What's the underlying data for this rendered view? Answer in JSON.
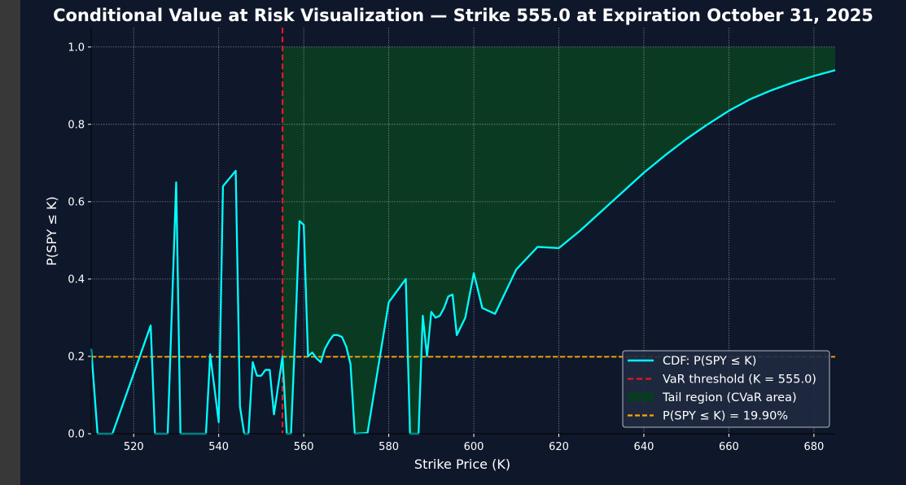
{
  "chart_data": {
    "type": "line",
    "title": "Conditional Value at Risk Visualization — Strike 555.0 at Expiration October 31, 2025",
    "xlabel": "Strike Price (K)",
    "ylabel": "P(SPY ≤ K)",
    "xlim": [
      510,
      685
    ],
    "ylim": [
      0,
      1.05
    ],
    "xticks": [
      520,
      540,
      560,
      580,
      600,
      620,
      640,
      660,
      680
    ],
    "yticks": [
      0.0,
      0.2,
      0.4,
      0.6,
      0.8,
      1.0
    ],
    "grid": true,
    "legend_position": "lower right",
    "series": [
      {
        "name": "CDF: P(SPY ≤ K)",
        "style": "solid",
        "color": "#00ffff",
        "x": [
          510,
          511.5,
          515,
          524,
          525,
          528,
          530,
          531,
          537,
          538,
          540,
          541,
          544,
          545,
          546,
          547,
          548,
          549,
          550,
          551,
          552,
          553,
          555,
          556,
          557,
          558,
          559,
          560,
          561,
          562,
          563,
          564,
          565,
          566,
          567,
          568,
          569,
          570,
          571,
          572,
          575,
          580,
          584,
          585,
          587,
          588,
          589,
          590,
          591,
          592,
          593,
          594,
          595,
          596,
          598,
          600,
          602,
          605,
          610,
          615,
          620,
          625,
          630,
          635,
          640,
          645,
          650,
          655,
          660,
          665,
          670,
          675,
          680,
          685
        ],
        "y": [
          0.22,
          0.0,
          0.0,
          0.28,
          0.0,
          0.0,
          0.65,
          0.0,
          0.0,
          0.205,
          0.03,
          0.64,
          0.68,
          0.07,
          0.0,
          0.0,
          0.185,
          0.15,
          0.15,
          0.165,
          0.165,
          0.05,
          0.2,
          0.0,
          0.0,
          0.26,
          0.55,
          0.54,
          0.2,
          0.21,
          0.195,
          0.185,
          0.22,
          0.24,
          0.255,
          0.255,
          0.25,
          0.225,
          0.18,
          0.0,
          0.002,
          0.34,
          0.4,
          0.0,
          0.0,
          0.305,
          0.2,
          0.315,
          0.3,
          0.305,
          0.325,
          0.355,
          0.36,
          0.255,
          0.3,
          0.415,
          0.325,
          0.31,
          0.425,
          0.483,
          0.48,
          0.525,
          0.575,
          0.625,
          0.675,
          0.72,
          0.762,
          0.8,
          0.835,
          0.865,
          0.888,
          0.908,
          0.925,
          0.94
        ]
      },
      {
        "name": "VaR threshold (K = 555.0)",
        "style": "dashed-vertical",
        "color": "#e41a1c",
        "x": 555.0
      },
      {
        "name": "Tail region (CVaR area)",
        "style": "fill-between",
        "color": "#0b3a22",
        "from_x": 555.0,
        "upper": 1.0
      },
      {
        "name": "P(SPY ≤ K) = 19.90%",
        "style": "dashed-horizontal",
        "color": "#ffa500",
        "y": 0.199
      }
    ]
  }
}
